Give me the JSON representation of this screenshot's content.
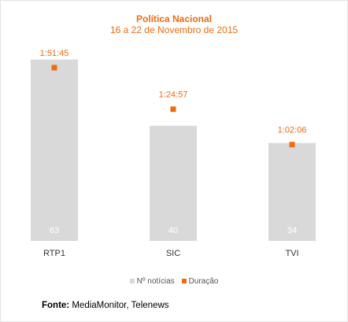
{
  "header": {
    "title": "Política Nacional",
    "subtitle": "16 a 22 de Novembro de 2015"
  },
  "chart_data": {
    "type": "bar",
    "categories": [
      "RTP1",
      "SIC",
      "TVI"
    ],
    "series": [
      {
        "name": "Nº notícias",
        "kind": "bar",
        "values": [
          63,
          40,
          34
        ],
        "color": "#d9d9d9"
      },
      {
        "name": "Duração",
        "kind": "scatter",
        "values": [
          6705,
          5097,
          3726
        ],
        "labels": [
          "1:51:45",
          "1:24:57",
          "1:02:06"
        ],
        "color": "#f26b0f"
      }
    ],
    "ylim_bars": [
      0,
      70
    ],
    "ylim_duration": [
      0,
      7800
    ],
    "legend_position": "bottom",
    "grid": false
  },
  "legend": {
    "items": [
      {
        "label": "Nº notícias",
        "color": "#d9d9d9"
      },
      {
        "label": "Duração",
        "color": "#f26b0f"
      }
    ]
  },
  "footer": {
    "source_label": "Fonte:",
    "source_text": "MediaMonitor, Telenews"
  }
}
